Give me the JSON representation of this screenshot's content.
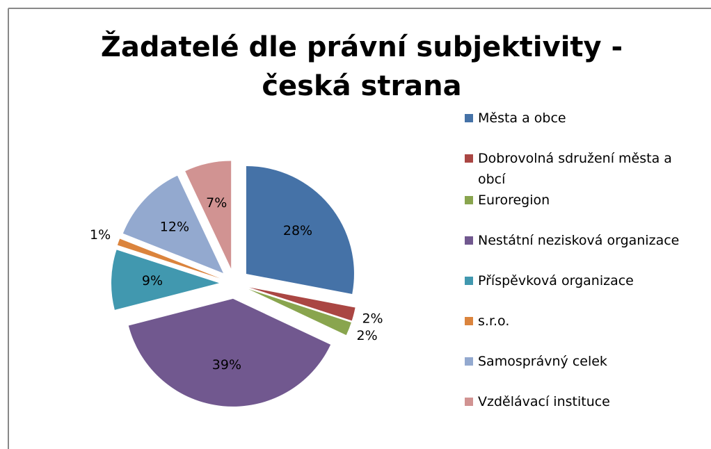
{
  "chart_data": {
    "type": "pie",
    "title": "Žadatelé dle právní subjektivity - česká strana",
    "categories": [
      "Města a obce",
      "Dobrovolná sdružení města a obcí",
      "Euroregion",
      "Nestátní nezisková organizace",
      "Příspěvková organizace",
      "s.r.o.",
      "Samosprávný celek",
      "Vzdělávací instituce"
    ],
    "values": [
      28,
      2,
      2,
      39,
      9,
      1,
      12,
      7
    ],
    "value_labels": [
      "28%",
      "2%",
      "2%",
      "39%",
      "9%",
      "1%",
      "12%",
      "7%"
    ],
    "colors": [
      "#4572a7",
      "#aa4643",
      "#89a54e",
      "#71588f",
      "#4198af",
      "#db843d",
      "#93a9cf",
      "#d19392"
    ],
    "exploded": true,
    "legend": "right"
  }
}
